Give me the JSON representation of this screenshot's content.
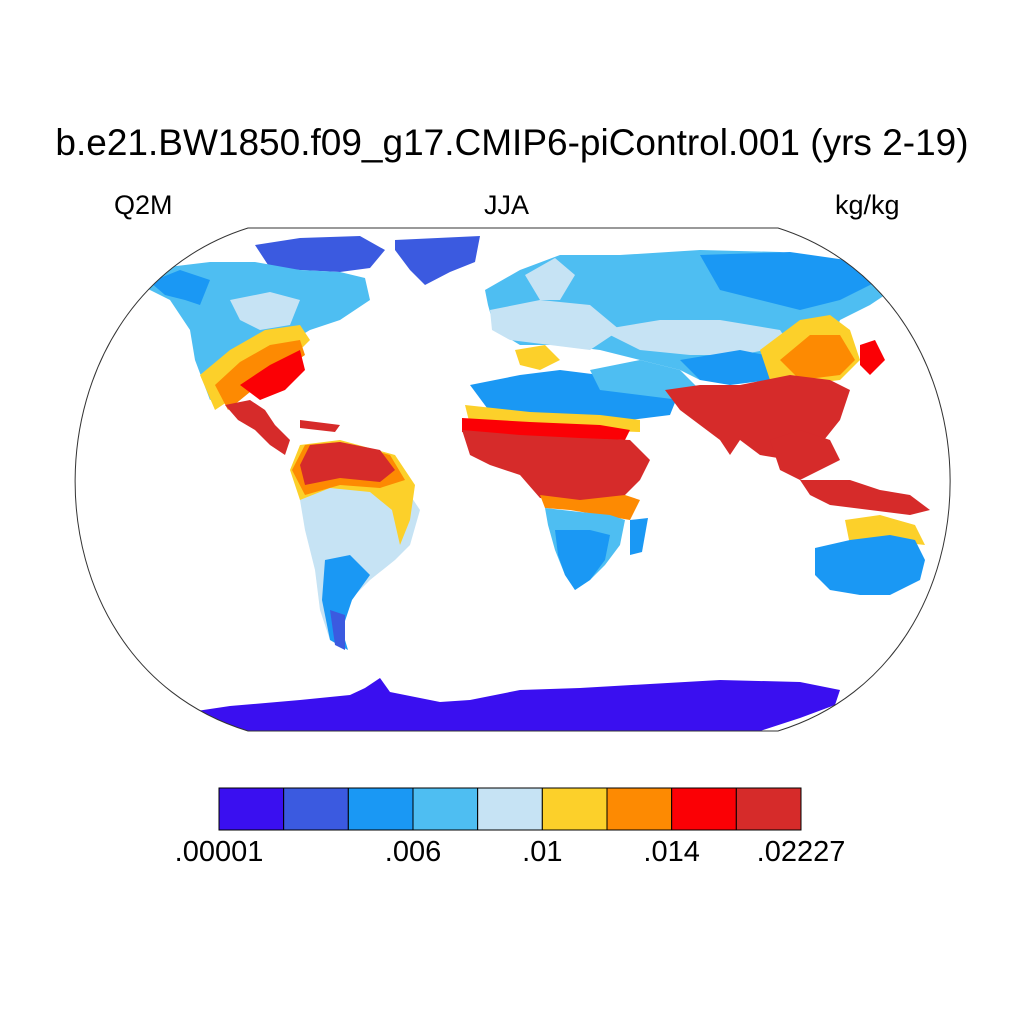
{
  "header": {
    "title": "b.e21.BW1850.f09_g17.CMIP6-piControl.001 (yrs 2-19)",
    "variable": "Q2M",
    "season": "JJA",
    "units": "kg/kg"
  },
  "colorbar": {
    "colors": [
      "#3a0ff0",
      "#3b5ae0",
      "#1a98f4",
      "#4ebef2",
      "#c6e3f4",
      "#fcd02a",
      "#fd8a02",
      "#fb0005",
      "#d62b2a"
    ],
    "labels": [
      {
        "text": ".00001",
        "boundary": 0
      },
      {
        "text": ".006",
        "boundary": 3
      },
      {
        "text": ".01",
        "boundary": 5
      },
      {
        "text": ".014",
        "boundary": 7
      },
      {
        "text": ".02227",
        "boundary": 9
      }
    ]
  },
  "map": {
    "projection": "Robinson",
    "field": "Q2M",
    "ocean_color": "#ffffff"
  }
}
